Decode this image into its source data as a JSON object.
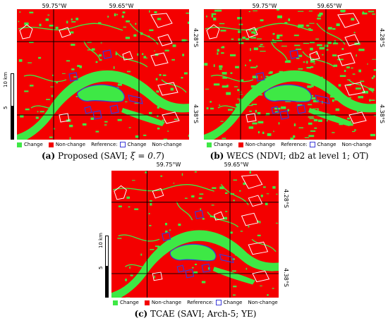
{
  "panels": [
    {
      "label": "(a)",
      "caption_text": "Proposed (SAVI; ",
      "caption_math": "ξ = 0.7",
      "caption_end": ")",
      "lon_left": "59.75°W",
      "lon_right": "59.65°W",
      "lat_top": "4.28°S",
      "lat_bottom": "4.38°S"
    },
    {
      "label": "(b)",
      "caption_text": "WECS (NDVI; db2 at level 1; OT)",
      "caption_math": "",
      "caption_end": "",
      "lon_left": "59.75°W",
      "lon_right": "59.65°W",
      "lat_top": "4.28°S",
      "lat_bottom": "4.38°S"
    },
    {
      "label": "(c)",
      "caption_text": "TCAE (SAVI; Arch-5; YE)",
      "caption_math": "",
      "caption_end": "",
      "lon_left": "59.75°W",
      "lon_right": "59.65°W",
      "lat_top": "4.28°S",
      "lat_bottom": "4.38°S"
    }
  ],
  "scale_bar": {
    "label_top": "10 km",
    "label_mid": "5",
    "label_bottom": "0"
  },
  "legend": {
    "change": "Change",
    "non_change": "Non-change",
    "reference": "Reference:",
    "ref_change": "Change",
    "ref_non_change": "Non-change"
  },
  "colors": {
    "change": "#3ee845",
    "non_change": "#f40000",
    "reference_change_outline": "#3a3ad8",
    "reference_non_change_outline": "#ffffff",
    "grid": "#000000"
  }
}
